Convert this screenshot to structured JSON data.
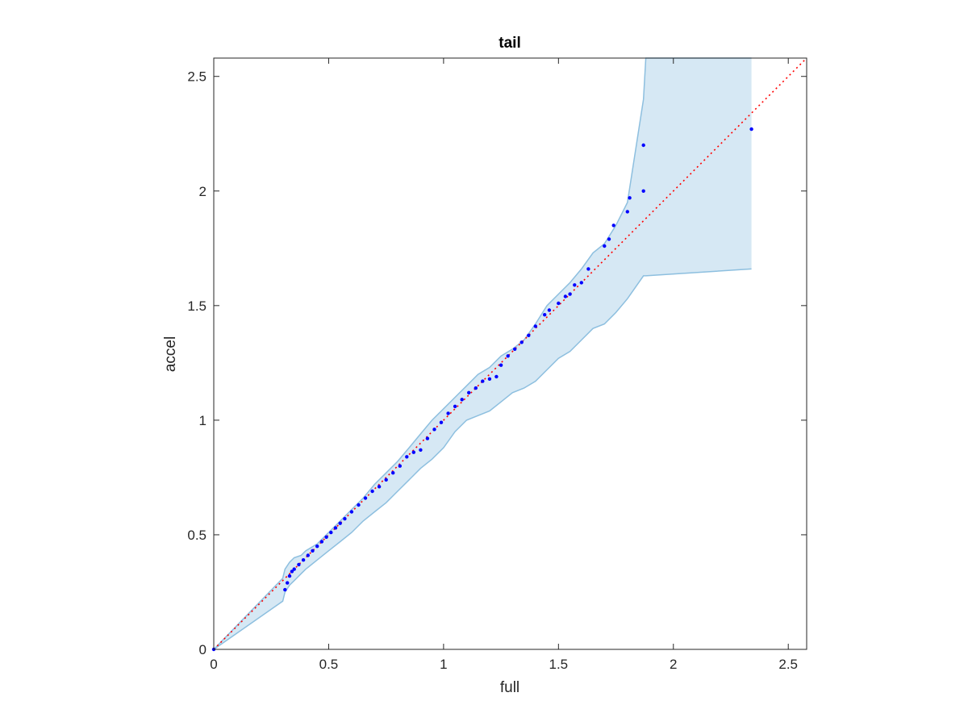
{
  "chart_data": {
    "type": "scatter",
    "title": "tail",
    "xlabel": "full",
    "ylabel": "accel",
    "xlim": [
      0,
      2.58
    ],
    "ylim": [
      0,
      2.58
    ],
    "x_ticks": [
      0,
      0.5,
      1,
      1.5,
      2,
      2.5
    ],
    "y_ticks": [
      0,
      0.5,
      1,
      1.5,
      2,
      2.5
    ],
    "x_tick_labels": [
      "0",
      "0.5",
      "1",
      "1.5",
      "2",
      "2.5"
    ],
    "y_tick_labels": [
      "0",
      "0.5",
      "1",
      "1.5",
      "2",
      "2.5"
    ],
    "grid": false,
    "reference_line": {
      "x": [
        0,
        2.58
      ],
      "y": [
        0,
        2.58
      ],
      "style": "dotted",
      "color": "#ff0000"
    },
    "confidence_band": {
      "color": "#d6e8f4",
      "edge_color": "#8dbfdf",
      "x": [
        0,
        0.3,
        0.31,
        0.33,
        0.35,
        0.38,
        0.4,
        0.45,
        0.5,
        0.55,
        0.6,
        0.65,
        0.7,
        0.75,
        0.8,
        0.85,
        0.9,
        0.95,
        1.0,
        1.05,
        1.1,
        1.15,
        1.2,
        1.25,
        1.3,
        1.35,
        1.4,
        1.45,
        1.5,
        1.55,
        1.6,
        1.65,
        1.7,
        1.75,
        1.8,
        1.87,
        1.88,
        2.34
      ],
      "upper": [
        0,
        0.31,
        0.35,
        0.38,
        0.4,
        0.41,
        0.43,
        0.46,
        0.51,
        0.56,
        0.61,
        0.66,
        0.72,
        0.77,
        0.82,
        0.88,
        0.94,
        1.0,
        1.05,
        1.1,
        1.15,
        1.2,
        1.23,
        1.28,
        1.31,
        1.35,
        1.42,
        1.5,
        1.55,
        1.6,
        1.66,
        1.73,
        1.77,
        1.85,
        1.95,
        2.4,
        2.58,
        2.58
      ],
      "lower": [
        0,
        0.21,
        0.25,
        0.28,
        0.3,
        0.33,
        0.35,
        0.39,
        0.43,
        0.47,
        0.51,
        0.56,
        0.6,
        0.64,
        0.69,
        0.74,
        0.79,
        0.83,
        0.88,
        0.95,
        1.0,
        1.02,
        1.04,
        1.08,
        1.12,
        1.14,
        1.17,
        1.22,
        1.27,
        1.3,
        1.35,
        1.4,
        1.42,
        1.47,
        1.53,
        1.63,
        1.63,
        1.66
      ]
    },
    "series": [
      {
        "color": "#0000ff",
        "x": [
          0.0,
          0.31,
          0.32,
          0.33,
          0.34,
          0.35,
          0.37,
          0.39,
          0.41,
          0.43,
          0.45,
          0.47,
          0.49,
          0.51,
          0.53,
          0.55,
          0.57,
          0.6,
          0.63,
          0.66,
          0.69,
          0.72,
          0.75,
          0.78,
          0.81,
          0.84,
          0.87,
          0.9,
          0.93,
          0.96,
          0.99,
          1.02,
          1.05,
          1.08,
          1.11,
          1.14,
          1.17,
          1.2,
          1.23,
          1.25,
          1.28,
          1.31,
          1.34,
          1.37,
          1.4,
          1.44,
          1.46,
          1.5,
          1.53,
          1.55,
          1.57,
          1.6,
          1.63,
          1.7,
          1.72,
          1.74,
          1.8,
          1.81,
          1.87,
          1.87,
          2.34
        ],
        "y": [
          0.0,
          0.26,
          0.29,
          0.32,
          0.34,
          0.35,
          0.37,
          0.39,
          0.41,
          0.43,
          0.45,
          0.47,
          0.49,
          0.51,
          0.53,
          0.55,
          0.57,
          0.6,
          0.63,
          0.66,
          0.69,
          0.71,
          0.74,
          0.77,
          0.8,
          0.84,
          0.86,
          0.87,
          0.92,
          0.96,
          0.99,
          1.03,
          1.06,
          1.09,
          1.12,
          1.14,
          1.17,
          1.18,
          1.19,
          1.24,
          1.28,
          1.31,
          1.34,
          1.37,
          1.41,
          1.46,
          1.48,
          1.51,
          1.54,
          1.55,
          1.59,
          1.6,
          1.66,
          1.76,
          1.79,
          1.85,
          1.91,
          1.97,
          2.0,
          2.2,
          2.27
        ]
      }
    ]
  }
}
